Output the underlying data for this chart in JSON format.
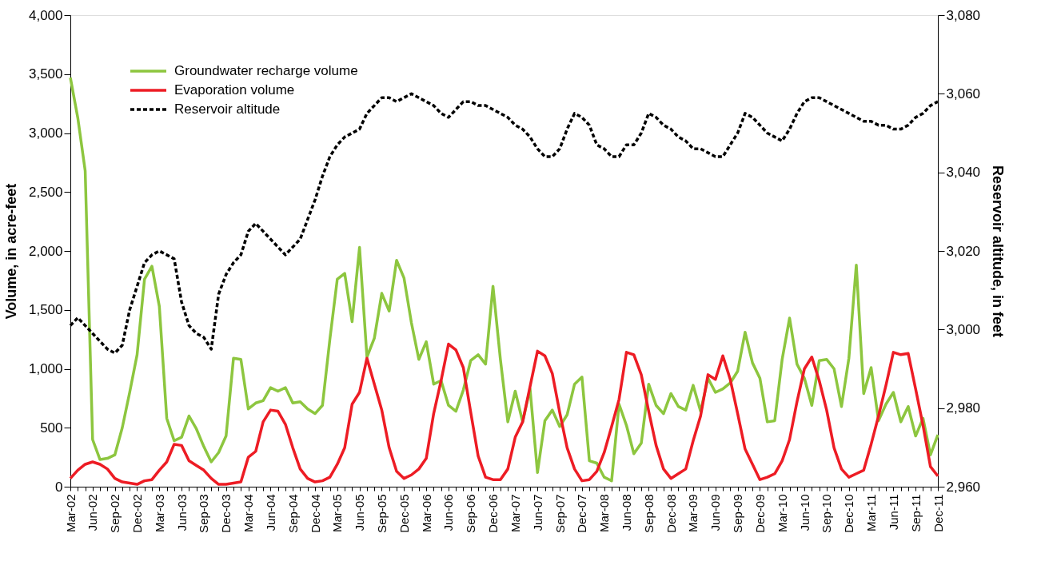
{
  "chart_data": {
    "type": "line",
    "ylabel": "Volume, in acre-feet",
    "y2label": "Reservoir altitude, in feet",
    "categories": [
      "Mar-02",
      null,
      null,
      "Jun-02",
      null,
      null,
      "Sep-02",
      null,
      null,
      "Dec-02",
      null,
      null,
      "Mar-03",
      null,
      null,
      "Jun-03",
      null,
      null,
      "Sep-03",
      null,
      null,
      "Dec-03",
      null,
      null,
      "Mar-04",
      null,
      null,
      "Jun-04",
      null,
      null,
      "Sep-04",
      null,
      null,
      "Dec-04",
      null,
      null,
      "Mar-05",
      null,
      null,
      "Jun-05",
      null,
      null,
      "Sep-05",
      null,
      null,
      "Dec-05",
      null,
      null,
      "Mar-06",
      null,
      null,
      "Jun-06",
      null,
      null,
      "Sep-06",
      null,
      null,
      "Dec-06",
      null,
      null,
      "Mar-07",
      null,
      null,
      "Jun-07",
      null,
      null,
      "Sep-07",
      null,
      null,
      "Dec-07",
      null,
      null,
      "Mar-08",
      null,
      null,
      "Jun-08",
      null,
      null,
      "Sep-08",
      null,
      null,
      "Dec-08",
      null,
      null,
      "Mar-09",
      null,
      null,
      "Jun-09",
      null,
      null,
      "Sep-09",
      null,
      null,
      "Dec-09",
      null,
      null,
      "Mar-10",
      null,
      null,
      "Jun-10",
      null,
      null,
      "Sep-10",
      null,
      null,
      "Dec-10",
      null,
      null,
      "Mar-11",
      null,
      null,
      "Jun-11",
      null,
      null,
      "Sep-11",
      null,
      null,
      "Dec-11"
    ],
    "series": [
      {
        "name": "Groundwater recharge volume",
        "color": "#8dc63f",
        "line_style": "solid",
        "values": [
          3470,
          3130,
          2680,
          400,
          230,
          240,
          270,
          500,
          800,
          1120,
          1760,
          1870,
          1530,
          580,
          390,
          420,
          600,
          490,
          340,
          210,
          290,
          430,
          1090,
          1080,
          660,
          710,
          730,
          840,
          810,
          840,
          710,
          720,
          660,
          620,
          690,
          1250,
          1760,
          1810,
          1400,
          2030,
          1100,
          1260,
          1640,
          1490,
          1920,
          1770,
          1390,
          1080,
          1230,
          870,
          900,
          690,
          640,
          820,
          1070,
          1120,
          1040,
          1700,
          1080,
          550,
          810,
          550,
          830,
          120,
          560,
          650,
          510,
          610,
          870,
          930,
          220,
          200,
          80,
          50,
          700,
          520,
          280,
          370,
          870,
          690,
          620,
          790,
          680,
          650,
          860,
          640,
          920,
          800,
          830,
          880,
          980,
          1310,
          1050,
          920,
          550,
          560,
          1080,
          1430,
          1040,
          920,
          690,
          1070,
          1080,
          1000,
          680,
          1090,
          1880,
          790,
          1010,
          560,
          700,
          800,
          550,
          680,
          430,
          580,
          270,
          440
        ]
      },
      {
        "name": "Evaporation volume",
        "color": "#ed1c24",
        "line_style": "solid",
        "values": [
          70,
          140,
          190,
          210,
          190,
          150,
          70,
          40,
          30,
          20,
          50,
          60,
          140,
          210,
          360,
          350,
          220,
          180,
          140,
          70,
          20,
          20,
          30,
          40,
          250,
          300,
          550,
          650,
          640,
          530,
          330,
          150,
          70,
          40,
          50,
          80,
          190,
          330,
          700,
          800,
          1090,
          870,
          650,
          330,
          130,
          70,
          100,
          150,
          240,
          620,
          900,
          1210,
          1160,
          1010,
          630,
          260,
          80,
          60,
          60,
          150,
          420,
          550,
          850,
          1150,
          1110,
          960,
          630,
          330,
          150,
          50,
          60,
          130,
          290,
          510,
          740,
          1140,
          1120,
          950,
          640,
          350,
          150,
          70,
          110,
          150,
          390,
          600,
          950,
          910,
          1110,
          910,
          620,
          320,
          190,
          60,
          80,
          110,
          220,
          400,
          720,
          1000,
          1100,
          900,
          650,
          330,
          150,
          80,
          110,
          140,
          360,
          600,
          860,
          1140,
          1120,
          1130,
          830,
          520,
          170,
          90
        ]
      },
      {
        "name": "Reservoir altitude",
        "color": "#000000",
        "line_style": "dashed",
        "axis": "y2",
        "values": [
          3001,
          3003,
          3001,
          2999,
          2997,
          2995,
          2994,
          2996,
          3005,
          3011,
          3017,
          3019,
          3020,
          3019,
          3018,
          3007,
          3001,
          2999,
          2998,
          2995,
          3009,
          3014,
          3017,
          3019,
          3025,
          3027,
          3025,
          3023,
          3021,
          3019,
          3021,
          3023,
          3028,
          3033,
          3039,
          3044,
          3047,
          3049,
          3050,
          3051,
          3055,
          3057,
          3059,
          3059,
          3058,
          3059,
          3060,
          3059,
          3058,
          3057,
          3055,
          3054,
          3056,
          3058,
          3058,
          3057,
          3057,
          3056,
          3055,
          3054,
          3052,
          3051,
          3049,
          3046,
          3044,
          3044,
          3046,
          3051,
          3055,
          3054,
          3052,
          3047,
          3046,
          3044,
          3044,
          3047,
          3047,
          3050,
          3055,
          3054,
          3052,
          3051,
          3049,
          3048,
          3046,
          3046,
          3045,
          3044,
          3044,
          3047,
          3050,
          3055,
          3054,
          3052,
          3050,
          3049,
          3048,
          3051,
          3055,
          3058,
          3059,
          3059,
          3058,
          3057,
          3056,
          3055,
          3054,
          3053,
          3053,
          3052,
          3052,
          3051,
          3051,
          3052,
          3054,
          3055,
          3057,
          3058
        ]
      }
    ],
    "ylim": [
      0,
      4000
    ],
    "yticks": [
      0,
      500,
      {
        "value": 1000,
        "label": "1,000"
      },
      {
        "value": 1500,
        "label": "1,500"
      },
      {
        "value": 2000,
        "label": "2,000"
      },
      {
        "value": 2500,
        "label": "2,500"
      },
      {
        "value": 3000,
        "label": "3,000"
      },
      {
        "value": 3500,
        "label": "3,500"
      },
      {
        "value": 4000,
        "label": "4,000"
      }
    ],
    "y2lim": [
      2960,
      3080
    ],
    "y2ticks": [
      {
        "value": 2960,
        "label": "2,960"
      },
      {
        "value": 2980,
        "label": "2,980"
      },
      {
        "value": 3000,
        "label": "3,000"
      },
      {
        "value": 3020,
        "label": "3,020"
      },
      {
        "value": 3040,
        "label": "3,040"
      },
      {
        "value": 3060,
        "label": "3,060"
      },
      {
        "value": 3080,
        "label": "3,080"
      }
    ],
    "grid": false,
    "legend": "top left",
    "marker": "none"
  }
}
